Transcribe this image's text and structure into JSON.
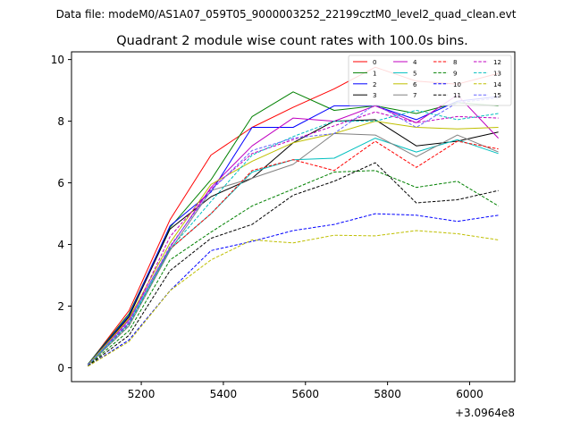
{
  "figure_text": {
    "suptitle": "Data file: modeM0/AS1A07_059T05_9000003252_22199cztM0_level2_quad_clean.evt",
    "offset_label": "+3.0964e8"
  },
  "chart_data": {
    "type": "line",
    "title": "Quadrant 2 module wise count rates with 100.0s bins.",
    "xlabel": "",
    "ylabel": "",
    "xlim": [
      5030,
      6110
    ],
    "ylim": [
      -0.45,
      10.25
    ],
    "x_offset_label": "+3.0964e8",
    "xticks": [
      5200,
      5400,
      5600,
      5800,
      6000
    ],
    "yticks": [
      0,
      2,
      4,
      6,
      8,
      10
    ],
    "grid": false,
    "legend_placement": "top-right",
    "legend_columns": 4,
    "x": [
      5070,
      5170,
      5270,
      5370,
      5470,
      5570,
      5670,
      5770,
      5870,
      5970,
      6070
    ],
    "series": [
      {
        "name": "0",
        "color": "#ff0000",
        "dash": "solid",
        "values": [
          0.1,
          1.85,
          4.8,
          6.9,
          7.8,
          8.45,
          9.05,
          9.75,
          9.3,
          9.2,
          9.55
        ]
      },
      {
        "name": "1",
        "color": "#008000",
        "dash": "solid",
        "values": [
          0.12,
          1.75,
          4.55,
          6.1,
          8.15,
          8.95,
          8.35,
          8.5,
          8.25,
          8.6,
          8.5
        ]
      },
      {
        "name": "2",
        "color": "#0000ff",
        "dash": "solid",
        "values": [
          0.11,
          1.7,
          4.6,
          5.7,
          7.8,
          7.8,
          8.5,
          8.5,
          8.05,
          8.65,
          8.8
        ]
      },
      {
        "name": "3",
        "color": "#000000",
        "dash": "solid",
        "values": [
          0.1,
          1.65,
          4.5,
          5.55,
          6.15,
          7.3,
          8.0,
          8.05,
          7.2,
          7.35,
          7.65
        ]
      },
      {
        "name": "4",
        "color": "#c000c0",
        "dash": "solid",
        "values": [
          0.09,
          1.55,
          3.9,
          5.85,
          7.2,
          8.1,
          8.0,
          8.5,
          7.95,
          8.85,
          7.45
        ]
      },
      {
        "name": "5",
        "color": "#00bfbf",
        "dash": "solid",
        "values": [
          0.09,
          1.45,
          3.85,
          5.0,
          6.35,
          6.75,
          6.8,
          7.45,
          7.0,
          7.4,
          6.95
        ]
      },
      {
        "name": "6",
        "color": "#bfbf00",
        "dash": "solid",
        "values": [
          0.1,
          1.6,
          4.05,
          5.95,
          6.7,
          7.3,
          7.6,
          8.0,
          7.8,
          7.75,
          7.8
        ]
      },
      {
        "name": "7",
        "color": "#808080",
        "dash": "solid",
        "values": [
          0.08,
          1.35,
          3.8,
          5.75,
          6.15,
          6.6,
          7.6,
          7.55,
          6.85,
          7.55,
          7.0
        ]
      },
      {
        "name": "8",
        "color": "#ff0000",
        "dash": "dashed",
        "values": [
          0.08,
          1.4,
          3.85,
          5.0,
          6.4,
          6.75,
          6.4,
          7.35,
          6.5,
          7.35,
          7.1
        ]
      },
      {
        "name": "9",
        "color": "#008000",
        "dash": "dashed",
        "values": [
          0.07,
          1.2,
          3.5,
          4.4,
          5.25,
          5.8,
          6.35,
          6.4,
          5.85,
          6.05,
          5.25
        ]
      },
      {
        "name": "10",
        "color": "#0000ff",
        "dash": "dashed",
        "values": [
          0.05,
          0.9,
          2.5,
          3.8,
          4.1,
          4.45,
          4.65,
          5.0,
          4.95,
          4.75,
          4.95
        ]
      },
      {
        "name": "11",
        "color": "#000000",
        "dash": "dashed",
        "values": [
          0.06,
          1.05,
          3.15,
          4.2,
          4.65,
          5.6,
          6.05,
          6.65,
          5.35,
          5.45,
          5.75
        ]
      },
      {
        "name": "12",
        "color": "#c000c0",
        "dash": "dashed",
        "values": [
          0.09,
          1.45,
          4.25,
          5.8,
          6.95,
          7.4,
          7.85,
          8.3,
          7.95,
          8.15,
          8.1
        ]
      },
      {
        "name": "13",
        "color": "#00bfbf",
        "dash": "dashed",
        "values": [
          0.09,
          1.4,
          3.85,
          5.4,
          6.9,
          7.5,
          8.0,
          8.0,
          8.35,
          8.05,
          8.25
        ]
      },
      {
        "name": "14",
        "color": "#bfbf00",
        "dash": "dashed",
        "values": [
          0.05,
          0.85,
          2.5,
          3.5,
          4.15,
          4.05,
          4.3,
          4.28,
          4.45,
          4.35,
          4.15
        ]
      },
      {
        "name": "15",
        "color": "#6666ff",
        "dash": "dashed",
        "values": [
          0.09,
          1.5,
          3.95,
          5.75,
          7.05,
          7.45,
          7.6,
          8.55,
          7.8,
          8.6,
          8.75
        ]
      }
    ]
  }
}
